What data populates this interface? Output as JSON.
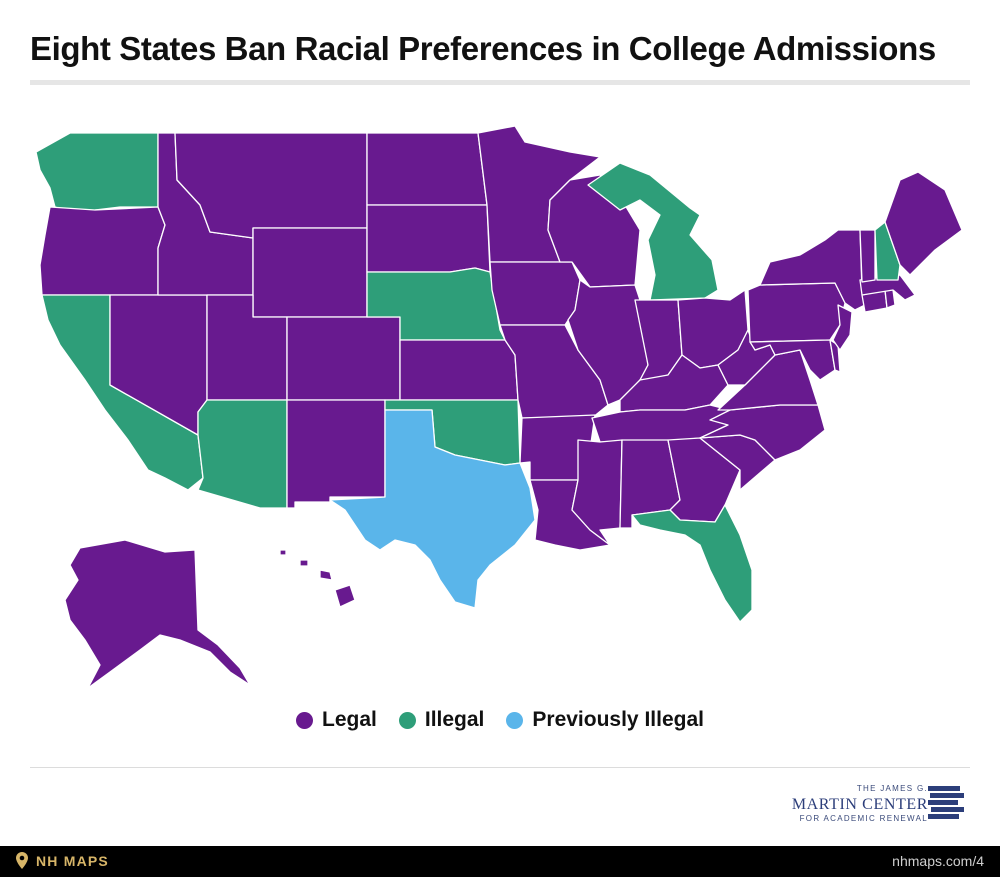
{
  "title": "Eight States Ban Racial Preferences in College Admissions",
  "colors": {
    "legal": "#681a8f",
    "illegal": "#2e9e79",
    "previously_illegal": "#5ab5ea",
    "border": "#ffffff"
  },
  "legend": [
    {
      "key": "legal",
      "label": "Legal"
    },
    {
      "key": "illegal",
      "label": "Illegal"
    },
    {
      "key": "previously_illegal",
      "label": "Previously Illegal"
    }
  ],
  "map_data": {
    "legal": [
      "OR",
      "ID",
      "MT",
      "WY",
      "ND",
      "SD",
      "NV",
      "UT",
      "CO",
      "KS",
      "NM",
      "MN",
      "IA",
      "MO",
      "AR",
      "LA",
      "WI",
      "IL",
      "IN",
      "OH",
      "KY",
      "TN",
      "MS",
      "AL",
      "GA",
      "SC",
      "NC",
      "VA",
      "WV",
      "MD",
      "DE",
      "NJ",
      "PA",
      "NY",
      "CT",
      "RI",
      "MA",
      "VT",
      "ME",
      "AK",
      "HI"
    ],
    "illegal": [
      "WA",
      "CA",
      "AZ",
      "NE",
      "OK",
      "MI",
      "NH",
      "FL"
    ],
    "previously_illegal": [
      "TX"
    ]
  },
  "logo": {
    "line1": "THE JAMES G.",
    "line2": "MARTIN CENTER",
    "line3": "FOR ACADEMIC RENEWAL"
  },
  "footer": {
    "brand": "NH MAPS",
    "url": "nhmaps.com/4",
    "pin_icon": "map-pin-icon"
  }
}
